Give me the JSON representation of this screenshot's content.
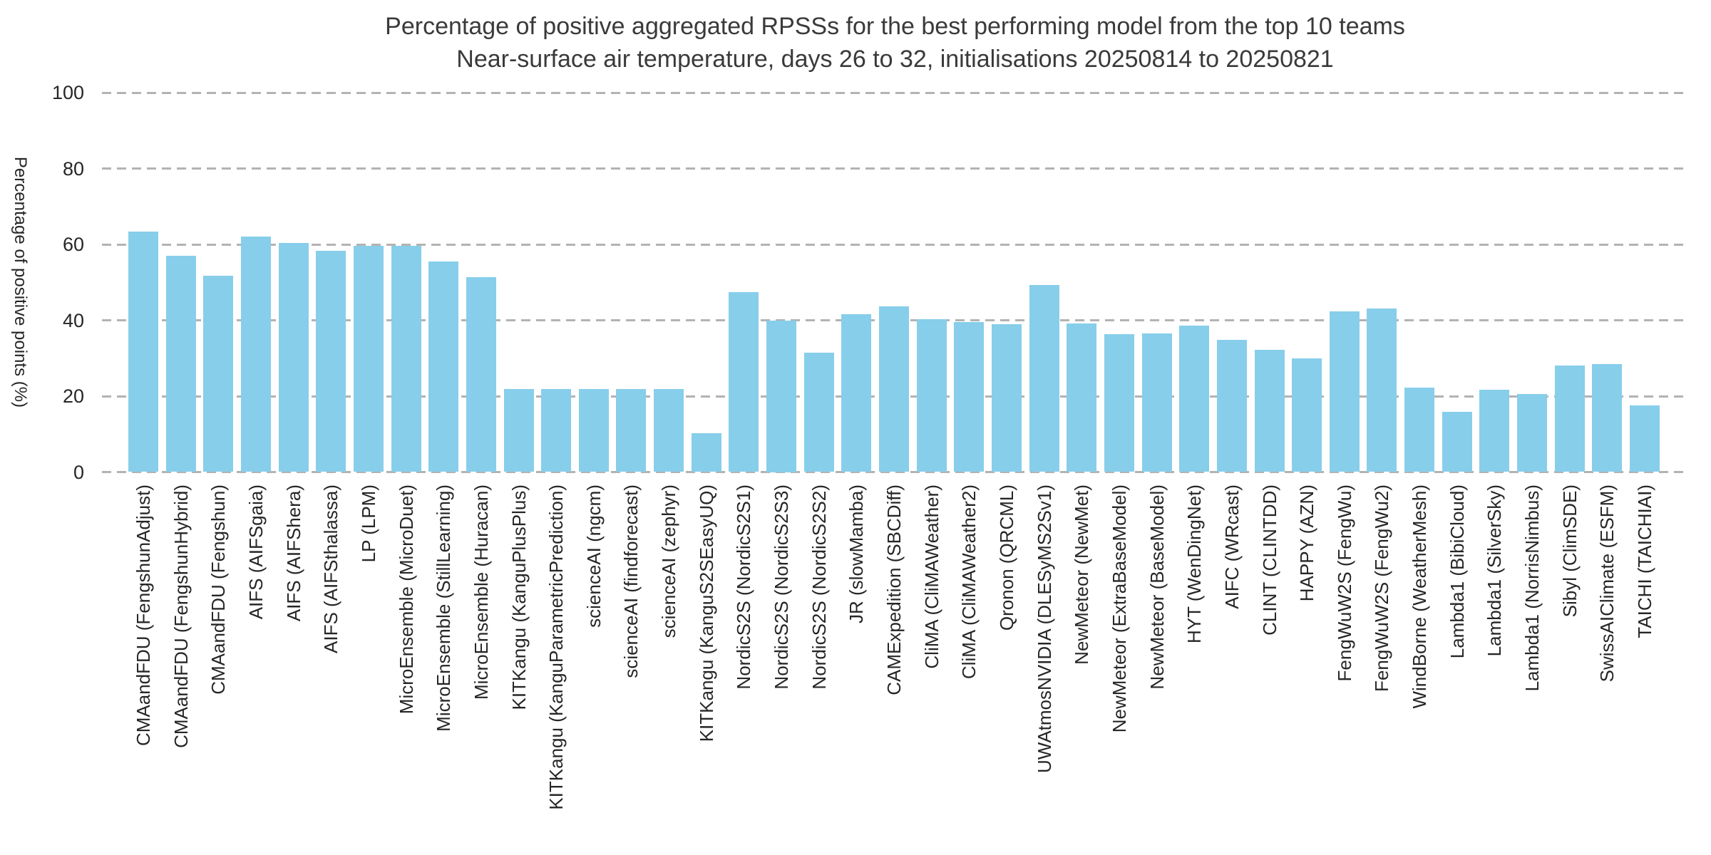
{
  "chart_data": {
    "type": "bar",
    "title": "Percentage of positive aggregated RPSSs for the best performing model from the top 10 teams",
    "subtitle": "Near-surface air temperature, days 26 to 32, initialisations 20250814 to 20250821",
    "ylabel": "Percentage of positive points (%)",
    "xlabel": "",
    "ylim": [
      0,
      100
    ],
    "yticks": [
      0,
      20,
      40,
      60,
      80,
      100
    ],
    "grid": "horizontal dashed gridlines at every y tick, no axis spines",
    "legend": "none",
    "bar_color": "#87CEEB",
    "grid_color": "#b3b3b3",
    "title_color": "#3a3a3a",
    "tick_color": "#262626",
    "categories": [
      "CMAandFDU (FengshunAdjust)",
      "CMAandFDU (FengshunHybrid)",
      "CMAandFDU (Fengshun)",
      "AIFS (AIFSgaia)",
      "AIFS (AIFShera)",
      "AIFS (AIFSthalassa)",
      "LP (LPM)",
      "MicroEnsemble (MicroDuet)",
      "MicroEnsemble (StillLearning)",
      "MicroEnsemble (Huracan)",
      "KITKangu (KanguPlusPlus)",
      "KITKangu (KanguParametricPrediction)",
      "scienceAI (ngcm)",
      "scienceAI (findforecast)",
      "scienceAI (zephyr)",
      "KITKangu (KanguS2SEasyUQ)",
      "NordicS2S (NordicS2S1)",
      "NordicS2S (NordicS2S3)",
      "NordicS2S (NordicS2S2)",
      "JR (slowMamba)",
      "CAMExpedition (SBCDiff)",
      "CliMA (CliMAWeather)",
      "CliMA (CliMAWeather2)",
      "Qronon (QRCML)",
      "UWAtmosNVIDIA (DLESyMS2Sv1)",
      "NewMeteor (NewMet)",
      "NewMeteor (ExtraBaseModel)",
      "NewMeteor (BaseModel)",
      "HYT (WenDingNet)",
      "AIFC (WRcast)",
      "CLINT (CLINTDD)",
      "HAPPY (AZN)",
      "FengWuW2S (FengWu)",
      "FengWuW2S (FengWu2)",
      "WindBorne (WeatherMesh)",
      "Lambda1 (BibiCloud)",
      "Lambda1 (SilverSky)",
      "Lambda1 (NorrisNimbus)",
      "Sibyl (ClimSDE)",
      "SwissAIClimate (ESFM)",
      "TAICHI (TAICHIAI)"
    ],
    "values": [
      63.4,
      57.0,
      51.8,
      62.0,
      60.4,
      58.3,
      59.6,
      59.7,
      55.5,
      51.4,
      21.8,
      21.8,
      21.8,
      21.8,
      21.8,
      10.3,
      47.4,
      40.0,
      31.5,
      41.6,
      43.7,
      40.2,
      39.6,
      38.9,
      49.3,
      39.1,
      36.3,
      36.5,
      38.6,
      34.8,
      32.2,
      29.9,
      42.3,
      43.1,
      22.3,
      15.8,
      21.7,
      20.6,
      28.0,
      28.5,
      17.6
    ]
  }
}
